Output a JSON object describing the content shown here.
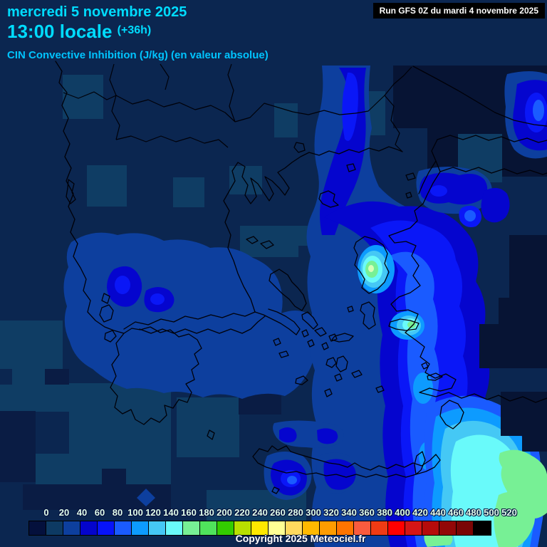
{
  "header": {
    "date_line": "mercredi 5 novembre 2025",
    "time_line": "13:00 locale",
    "time_offset": "(+36h)",
    "subtitle": "CIN Convective Inhibition (J/kg) (en valeur absolue)",
    "run_info": "Run GFS 0Z du mardi 4 novembre 2025"
  },
  "footer": {
    "copyright": "Copyright 2025 Meteociel.fr"
  },
  "colors": {
    "header_text": "#00DCFF",
    "subtitle_text": "#00C4FF",
    "run_box_background": "#000000",
    "run_box_text": "#FFFFFF",
    "map_background": "#0B2650",
    "coastline": "#000008",
    "scale_label_text": "#E2FFEC"
  },
  "scale": {
    "unit_hint": "J/kg",
    "values": [
      "0",
      "20",
      "40",
      "60",
      "80",
      "100",
      "120",
      "140",
      "160",
      "180",
      "200",
      "220",
      "240",
      "260",
      "280",
      "300",
      "320",
      "340",
      "360",
      "380",
      "400",
      "420",
      "440",
      "460",
      "480",
      "500",
      "520"
    ],
    "colors": [
      "#04103C",
      "#0D3A63",
      "#0D3F9E",
      "#0404CC",
      "#0713FA",
      "#1A5BFF",
      "#0D9BFF",
      "#45C8F5",
      "#69FAFA",
      "#77F095",
      "#4FE35C",
      "#33CC00",
      "#B8E000",
      "#FFE800",
      "#FFFF94",
      "#FFD95E",
      "#FFB900",
      "#FF9C00",
      "#FF7400",
      "#FA5B3E",
      "#EF3B14",
      "#FF0000",
      "#D51515",
      "#B50B0B",
      "#930707",
      "#7A0505",
      "#000000"
    ]
  },
  "chart_data": {
    "type": "heatmap",
    "title": "CIN Convective Inhibition (J/kg) (en valeur absolue)",
    "model_run": "Run GFS 0Z du mardi 4 novembre 2025",
    "valid_time": "mercredi 5 novembre 2025 13:00 locale (+36h)",
    "region": "Greece - Aegean Sea - Western Turkey",
    "legend_values": [
      0,
      20,
      40,
      60,
      80,
      100,
      120,
      140,
      160,
      180,
      200,
      220,
      240,
      260,
      280,
      300,
      320,
      340,
      360,
      380,
      400,
      420,
      440,
      460,
      480,
      500,
      520
    ],
    "field_summary": "Low CIN (0-60 J/kg) over the Balkans and mainland Greece; a band of 60-160 J/kg over the eastern Aegean from Marmara through Lesbos, Chios and Samos toward the Dodecanese; maxima 160-220 J/kg near Lesbos, Samos and the far southeastern corner toward the Turkish coast"
  }
}
